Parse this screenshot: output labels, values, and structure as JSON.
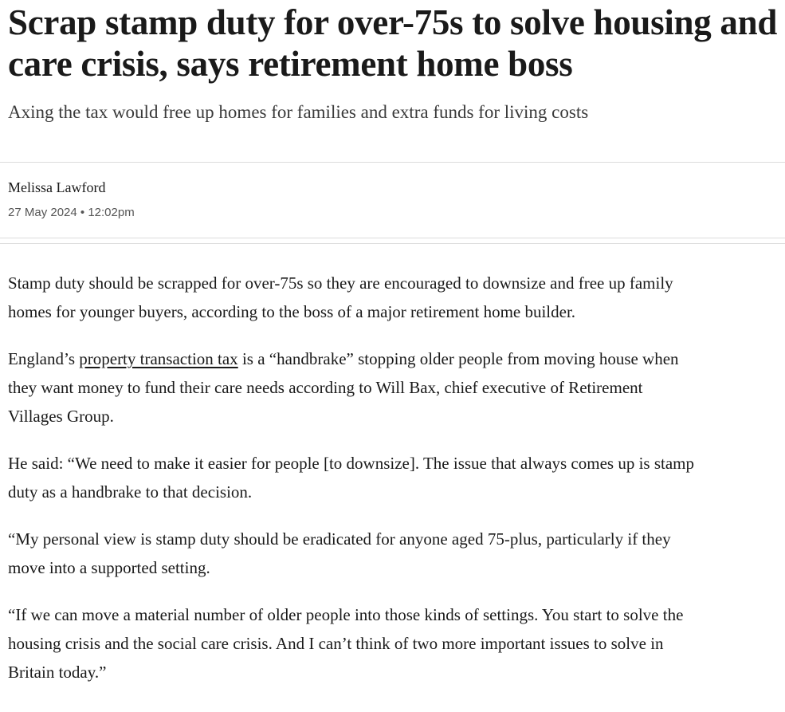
{
  "article": {
    "headline": "Scrap stamp duty for over-75s to solve housing and care crisis, says retirement home boss",
    "standfirst": "Axing the tax would free up homes for families and extra funds for living costs",
    "author": "Melissa Lawford",
    "date": "27 May 2024 • 12:02pm",
    "paragraphs": [
      {
        "parts": [
          "Stamp duty should be scrapped for over-75s so they are encouraged to downsize and free up family homes for younger buyers, according to the boss of a major retirement home builder."
        ]
      },
      {
        "parts": [
          "England’s ",
          "property transaction tax",
          " is a “handbrake” stopping older people from moving house when they want money to fund their care needs according to Will Bax, chief executive of Retirement Villages Group."
        ]
      },
      {
        "parts": [
          "He said: “We need to make it easier for people [to downsize]. The issue that always comes up is stamp duty as a handbrake to that decision."
        ]
      },
      {
        "parts": [
          "“My personal view is stamp duty should be eradicated for anyone aged 75-plus, particularly if they move into a supported setting."
        ]
      },
      {
        "parts": [
          "“If we can move a material number of older people into those kinds of settings. You start to solve the housing crisis and the social care crisis. And I can’t think of two more important issues to solve in Britain today.”"
        ]
      }
    ]
  }
}
